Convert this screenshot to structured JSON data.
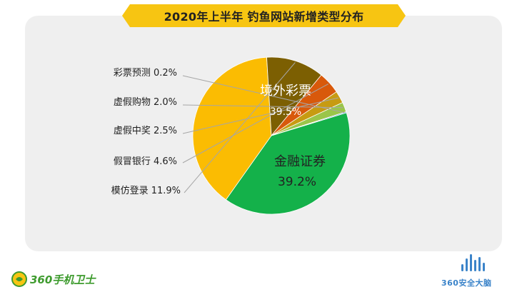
{
  "header": {
    "title": "2020年上半年 钓鱼网站新增类型分布"
  },
  "chart_data": {
    "type": "pie",
    "title": "2020年上半年 钓鱼网站新增类型分布",
    "start_angle_deg": 73,
    "direction": "clockwise",
    "slices": [
      {
        "name": "境外彩票",
        "value": 39.5,
        "label": "39.5%",
        "color": "#14b14a"
      },
      {
        "name": "金融证券",
        "value": 39.2,
        "label": "39.2%",
        "color": "#fbbc02"
      },
      {
        "name": "模仿登录",
        "value": 11.9,
        "label": "11.9%",
        "color": "#7c5f02"
      },
      {
        "name": "假冒银行",
        "value": 4.6,
        "label": "4.6%",
        "color": "#d8590b"
      },
      {
        "name": "虚假中奖",
        "value": 2.5,
        "label": "2.5%",
        "color": "#c79b12"
      },
      {
        "name": "虚假购物",
        "value": 2.0,
        "label": "2.0%",
        "color": "#9ac54a"
      },
      {
        "name": "彩票预测",
        "value": 0.2,
        "label": "0.2%",
        "color": "#5b9bd5"
      }
    ]
  },
  "footer": {
    "left_brand": "360手机卫士",
    "right_brand": "360安全大脑",
    "brand_green": "#3e9b2e",
    "brand_blue": "#3a83c9"
  }
}
